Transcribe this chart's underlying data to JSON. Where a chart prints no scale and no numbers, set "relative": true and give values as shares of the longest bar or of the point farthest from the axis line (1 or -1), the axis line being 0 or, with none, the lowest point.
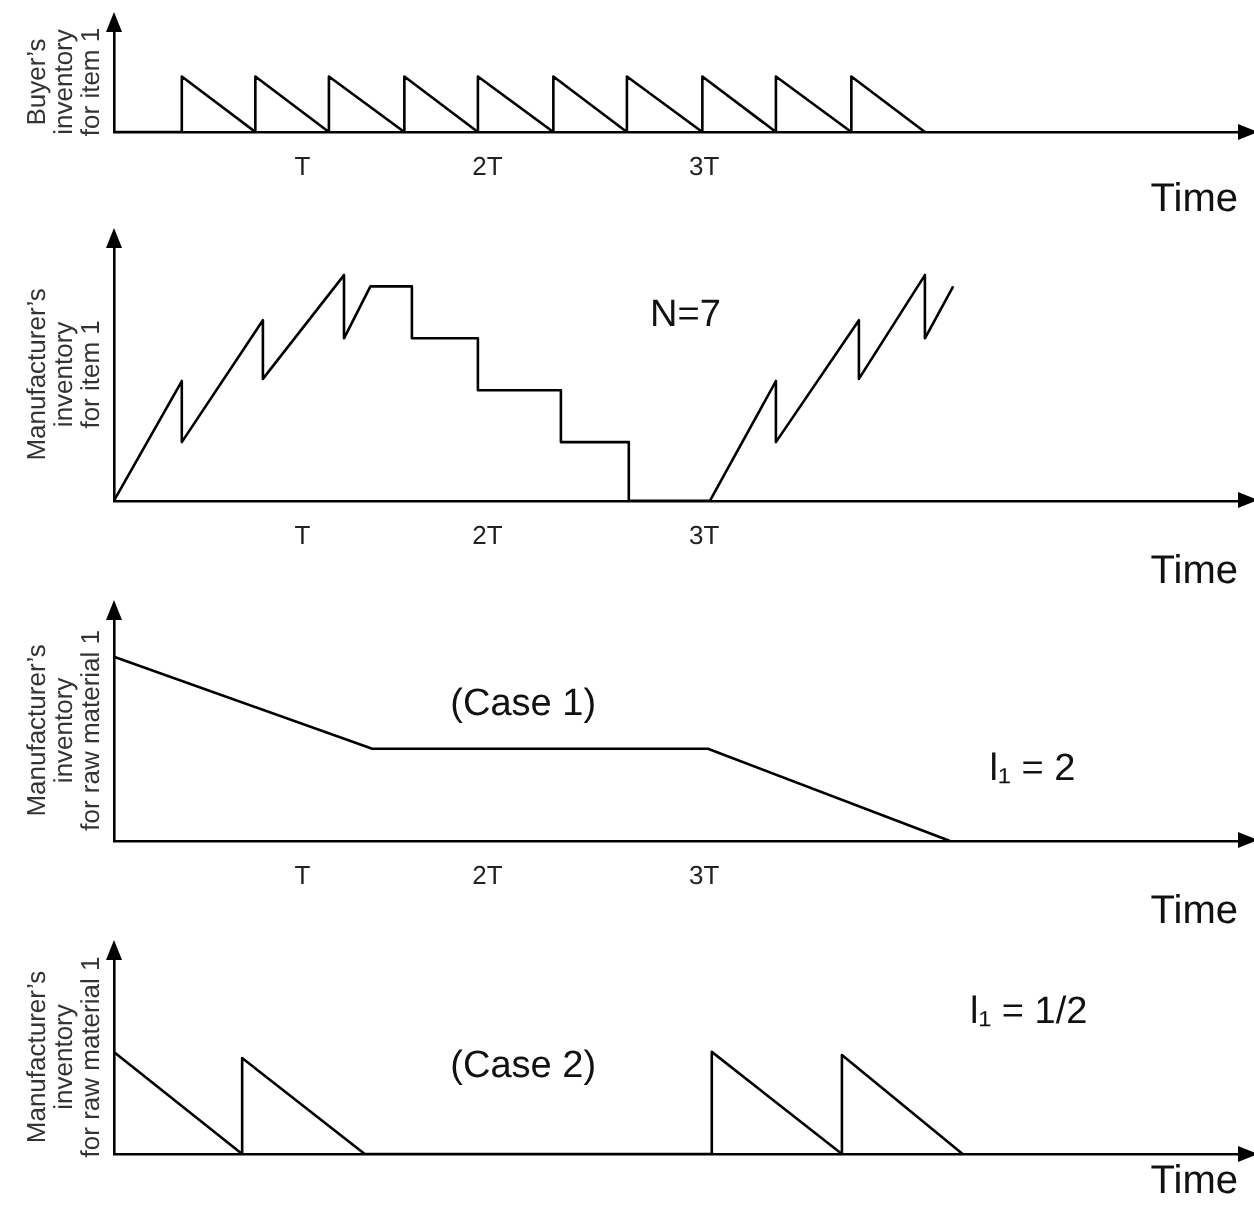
{
  "chart_data": [
    {
      "type": "line",
      "ylabel": "Buyer’s inventory for item 1",
      "xlabel": "Time",
      "relative": true,
      "color": "#000000",
      "xlim": [
        0,
        5.96
      ],
      "tick_labels": "x",
      "xticks": [
        {
          "value": 1,
          "label": "T"
        },
        {
          "value": 1.98,
          "label": "2T"
        },
        {
          "value": 3.13,
          "label": "3T"
        }
      ],
      "x": [
        0,
        0.36,
        0.36,
        0.75,
        0.75,
        1.14,
        1.14,
        1.54,
        1.54,
        1.93,
        1.93,
        2.33,
        2.33,
        2.72,
        2.72,
        3.12,
        3.12,
        3.51,
        3.51,
        3.91,
        3.91,
        4.3
      ],
      "values": [
        0,
        0,
        1,
        0,
        1,
        0,
        1,
        0,
        1,
        0,
        1,
        0,
        1,
        0,
        1,
        0,
        1,
        0,
        1,
        0,
        1,
        0
      ]
    },
    {
      "type": "line",
      "ylabel": "Manufacturer’s inventory for item 1",
      "xlabel": "Time",
      "relative": true,
      "color": "#000000",
      "xlim": [
        0,
        5.96
      ],
      "tick_labels": "x",
      "xticks": [
        {
          "value": 1,
          "label": "T"
        },
        {
          "value": 1.98,
          "label": "2T"
        },
        {
          "value": 3.13,
          "label": "3T"
        }
      ],
      "annotations": [
        "N=7"
      ],
      "x": [
        0,
        0.36,
        0.36,
        0.79,
        0.79,
        1.22,
        1.22,
        1.36,
        1.58,
        1.58,
        1.93,
        1.93,
        2.37,
        2.37,
        2.73,
        2.73,
        3.16,
        3.51,
        3.51,
        3.95,
        3.95,
        4.3,
        4.3,
        4.45
      ],
      "values": [
        0,
        0.53,
        0.26,
        0.8,
        0.54,
        1,
        0.72,
        0.95,
        0.95,
        0.72,
        0.72,
        0.49,
        0.49,
        0.26,
        0.26,
        0,
        0,
        0.53,
        0.26,
        0.8,
        0.54,
        1,
        0.72,
        0.95
      ]
    },
    {
      "type": "line",
      "ylabel": "Manufacturer’s inventory for raw material 1",
      "xlabel": "Time",
      "relative": true,
      "color": "#000000",
      "xlim": [
        0,
        5.96
      ],
      "tick_labels": "x",
      "xticks": [
        {
          "value": 1,
          "label": "T"
        },
        {
          "value": 1.98,
          "label": "2T"
        },
        {
          "value": 3.13,
          "label": "3T"
        }
      ],
      "annotations": [
        "(Case 1)",
        "l₁ = 2"
      ],
      "x": [
        0,
        1.37,
        3.15,
        4.43
      ],
      "values": [
        1,
        0.5,
        0.5,
        0
      ]
    },
    {
      "type": "line",
      "ylabel": "Manufacturer’s inventory for raw material 1",
      "xlabel": "Time",
      "relative": true,
      "color": "#000000",
      "xlim": [
        0,
        5.96
      ],
      "tick_labels": false,
      "annotations": [
        "(Case 2)",
        "l₁ = 1/2"
      ],
      "x": [
        0,
        0.68,
        0.68,
        1.33,
        3.17,
        3.17,
        3.86,
        3.86,
        4.5
      ],
      "values": [
        1,
        0,
        0.94,
        0,
        0,
        1,
        0,
        0.97,
        0
      ]
    }
  ]
}
